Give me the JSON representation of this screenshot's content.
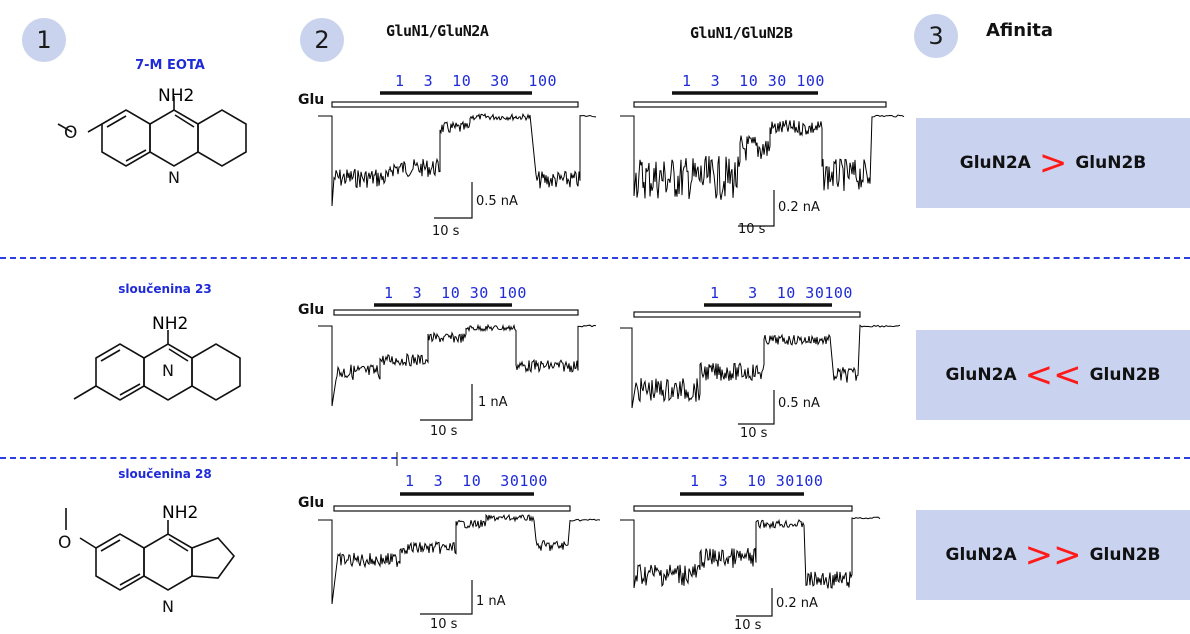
{
  "badges": {
    "b1": "1",
    "b2": "2",
    "b3": "3"
  },
  "headers": {
    "col_a": "GluN1/GluN2A",
    "col_b": "GluN1/GluN2B",
    "affinity": "Afinita"
  },
  "rows": [
    {
      "compound": "7-M EOTA",
      "nh2": "NH2",
      "n_label": "N",
      "glu": "Glu",
      "conc_a": "1  3  10  30  100",
      "conc_b": "1  3  10 30 100",
      "scale_a_current": "0.5 nA",
      "scale_a_time": "10 s",
      "scale_b_current": "0.2 nA",
      "scale_b_time": "10 s",
      "aff_left": "GluN2A",
      "aff_sym": ">",
      "aff_right": "GluN2B"
    },
    {
      "compound": "sloučenina 23",
      "nh2": "NH2",
      "n_label": "N",
      "glu": "Glu",
      "conc_a": "1  3  10 30 100",
      "conc_b": "1   3  10 30100",
      "scale_a_current": "1 nA",
      "scale_a_time": "10 s",
      "scale_b_current": "0.5 nA",
      "scale_b_time": "10 s",
      "aff_left": "GluN2A",
      "aff_sym": "<<",
      "aff_right": "GluN2B"
    },
    {
      "compound": "sloučenina 28",
      "nh2": "NH2",
      "n_label": "N",
      "glu": "Glu",
      "conc_a": "1  3  10  30100",
      "conc_b": "1  3  10 30100",
      "scale_a_current": "1 nA",
      "scale_a_time": "10 s",
      "scale_b_current": "0.2 nA",
      "scale_b_time": "10 s",
      "aff_left": "GluN2A",
      "aff_sym": ">>",
      "aff_right": "GluN2B"
    }
  ],
  "colors": {
    "accent_blue": "#1f2bd8",
    "affinity_box": "#c9d3f0",
    "badge": "#c9d3ee",
    "symbol_red": "#ff1a1a"
  }
}
